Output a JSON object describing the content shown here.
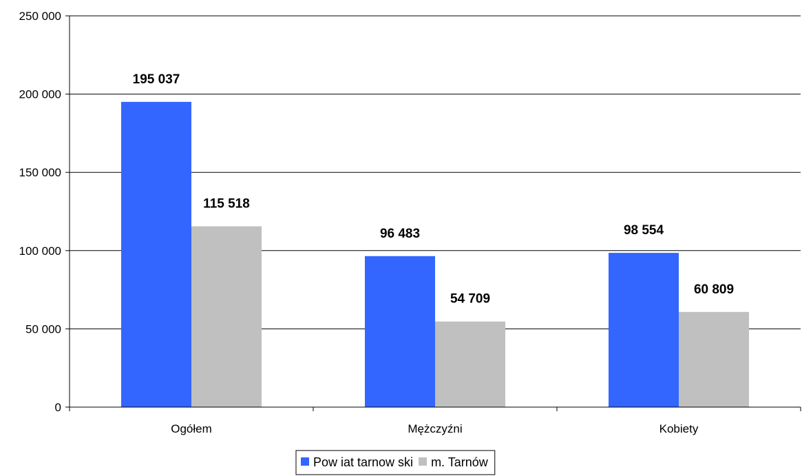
{
  "chart_data": {
    "type": "bar",
    "categories": [
      "Ogółem",
      "Mężczyźni",
      "Kobiety"
    ],
    "series": [
      {
        "name": "Pow iat tarnow ski",
        "values": [
          195037,
          96483,
          98554
        ],
        "labels": [
          "195 037",
          "96 483",
          "98 554"
        ],
        "color": "#3366ff"
      },
      {
        "name": "m. Tarnów",
        "values": [
          115518,
          54709,
          60809
        ],
        "labels": [
          "115 518",
          "54 709",
          "60 809"
        ],
        "color": "#c0c0c0"
      }
    ],
    "y_ticks": [
      0,
      50000,
      100000,
      150000,
      200000,
      250000
    ],
    "y_tick_labels": [
      "0",
      "50 000",
      "100 000",
      "150 000",
      "200 000",
      "250 000"
    ],
    "ylim": [
      0,
      250000
    ],
    "grid": true,
    "legend": "bottom"
  }
}
